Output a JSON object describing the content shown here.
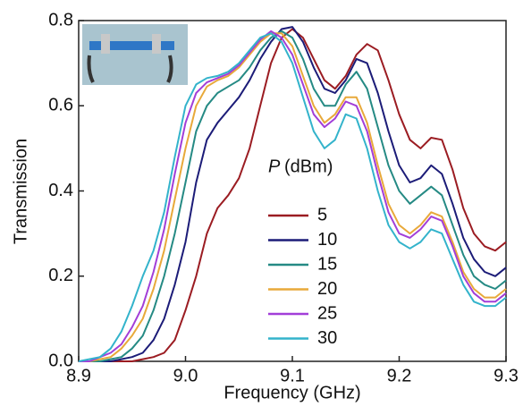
{
  "chart_data": {
    "type": "line",
    "x_label": "Frequency (GHz)",
    "y_label": "Transmission",
    "legend_title_symbol": "P",
    "legend_title_unit": "(dBm)",
    "x": [
      8.9,
      8.91,
      8.92,
      8.93,
      8.94,
      8.95,
      8.96,
      8.97,
      8.98,
      8.99,
      9.0,
      9.01,
      9.02,
      9.03,
      9.04,
      9.05,
      9.06,
      9.07,
      9.08,
      9.09,
      9.1,
      9.11,
      9.12,
      9.13,
      9.14,
      9.15,
      9.16,
      9.17,
      9.18,
      9.19,
      9.2,
      9.21,
      9.22,
      9.23,
      9.24,
      9.25,
      9.26,
      9.27,
      9.28,
      9.29,
      9.3
    ],
    "series": [
      {
        "name": "5",
        "color": "#9b1c22",
        "values": [
          0,
          0,
          0,
          0,
          0,
          0,
          0.005,
          0.01,
          0.02,
          0.05,
          0.12,
          0.2,
          0.3,
          0.36,
          0.39,
          0.43,
          0.5,
          0.6,
          0.7,
          0.76,
          0.78,
          0.76,
          0.71,
          0.66,
          0.64,
          0.67,
          0.72,
          0.745,
          0.73,
          0.66,
          0.58,
          0.52,
          0.5,
          0.525,
          0.52,
          0.45,
          0.36,
          0.3,
          0.27,
          0.26,
          0.28
        ]
      },
      {
        "name": "10",
        "color": "#1c1c78",
        "values": [
          0,
          0,
          0,
          0,
          0.005,
          0.01,
          0.02,
          0.05,
          0.1,
          0.18,
          0.28,
          0.42,
          0.52,
          0.56,
          0.59,
          0.62,
          0.66,
          0.71,
          0.75,
          0.78,
          0.785,
          0.75,
          0.69,
          0.64,
          0.63,
          0.66,
          0.71,
          0.7,
          0.63,
          0.54,
          0.46,
          0.42,
          0.43,
          0.46,
          0.44,
          0.37,
          0.29,
          0.24,
          0.21,
          0.2,
          0.22
        ]
      },
      {
        "name": "15",
        "color": "#258a84",
        "values": [
          0,
          0,
          0,
          0.005,
          0.01,
          0.03,
          0.06,
          0.12,
          0.2,
          0.3,
          0.42,
          0.54,
          0.6,
          0.63,
          0.645,
          0.66,
          0.69,
          0.73,
          0.76,
          0.775,
          0.76,
          0.71,
          0.64,
          0.6,
          0.6,
          0.65,
          0.68,
          0.64,
          0.55,
          0.46,
          0.4,
          0.37,
          0.39,
          0.41,
          0.39,
          0.32,
          0.25,
          0.2,
          0.18,
          0.17,
          0.19
        ]
      },
      {
        "name": "20",
        "color": "#e8a93a",
        "values": [
          0,
          0,
          0.005,
          0.01,
          0.03,
          0.06,
          0.1,
          0.17,
          0.26,
          0.38,
          0.5,
          0.6,
          0.645,
          0.66,
          0.67,
          0.69,
          0.72,
          0.75,
          0.77,
          0.77,
          0.74,
          0.67,
          0.6,
          0.56,
          0.58,
          0.62,
          0.62,
          0.56,
          0.46,
          0.37,
          0.32,
          0.3,
          0.32,
          0.35,
          0.34,
          0.28,
          0.21,
          0.17,
          0.15,
          0.15,
          0.17
        ]
      },
      {
        "name": "25",
        "color": "#a23ed8",
        "values": [
          0,
          0,
          0.01,
          0.02,
          0.04,
          0.08,
          0.13,
          0.21,
          0.31,
          0.44,
          0.56,
          0.63,
          0.655,
          0.665,
          0.675,
          0.695,
          0.725,
          0.755,
          0.775,
          0.76,
          0.72,
          0.65,
          0.58,
          0.55,
          0.57,
          0.61,
          0.6,
          0.54,
          0.44,
          0.35,
          0.3,
          0.29,
          0.31,
          0.34,
          0.33,
          0.27,
          0.2,
          0.16,
          0.14,
          0.14,
          0.16
        ]
      },
      {
        "name": "30",
        "color": "#33b3cb",
        "values": [
          0,
          0.005,
          0.01,
          0.03,
          0.07,
          0.13,
          0.2,
          0.26,
          0.35,
          0.48,
          0.6,
          0.65,
          0.665,
          0.67,
          0.68,
          0.7,
          0.73,
          0.76,
          0.77,
          0.75,
          0.7,
          0.62,
          0.54,
          0.5,
          0.52,
          0.58,
          0.57,
          0.5,
          0.4,
          0.32,
          0.28,
          0.265,
          0.28,
          0.31,
          0.3,
          0.24,
          0.18,
          0.14,
          0.13,
          0.13,
          0.15
        ]
      }
    ],
    "xlim": [
      8.9,
      9.3
    ],
    "xticks": [
      8.9,
      {
        "value": 9,
        "label": "9.0"
      },
      9.1,
      9.2,
      9.3
    ],
    "ylim": [
      0,
      0.8
    ],
    "yticks": [
      {
        "value": 0,
        "label": "0.0"
      },
      0.2,
      0.4,
      0.6,
      0.8
    ]
  }
}
